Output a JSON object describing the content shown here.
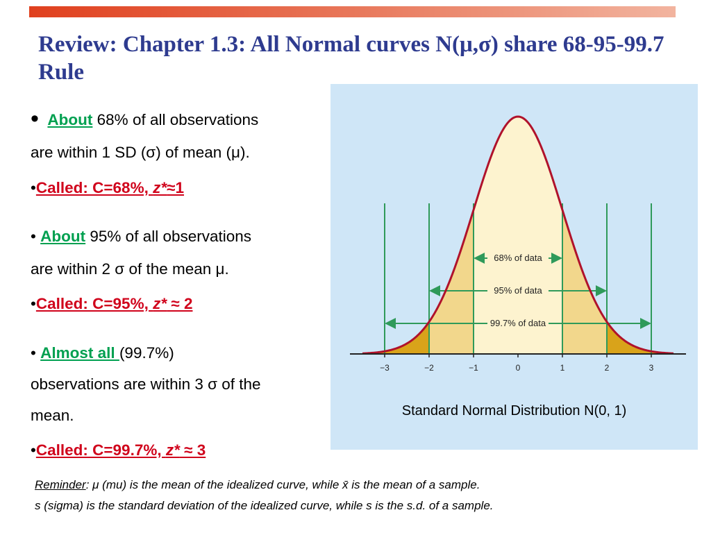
{
  "title": "Review: Chapter 1.3: All Normal curves N(μ,σ) share 68-95-99.7 Rule",
  "bullets": {
    "b1": {
      "about": "About",
      "line1_rest": " 68% of all observations",
      "line2": "are within 1 SD (σ) of mean (μ).",
      "called": "Called: C=68%, ",
      "z": "z*",
      "called_end": "≈1"
    },
    "b2": {
      "about": "About",
      "line1_rest": " 95% of all observations",
      "line2": "are within 2 σ of the mean μ.",
      "called": "Called: C=95%, ",
      "z": "z*",
      "called_end": " ≈ 2"
    },
    "b3": {
      "about": "Almost all ",
      "line1_rest": "(99.7%)",
      "line2": "observations are within 3 σ of the",
      "line3": "mean.",
      "called": "Called: C=99.7%, ",
      "z": "z*",
      "called_end": " ≈ 3"
    }
  },
  "figure": {
    "caption": "Standard Normal Distribution N(0, 1)",
    "ticks": [
      "−3",
      "−2",
      "−1",
      "0",
      "1",
      "2",
      "3"
    ],
    "band_labels": [
      "68% of data",
      "95% of data",
      "99.7% of data"
    ]
  },
  "reminder": {
    "label": "Reminder",
    "line1": ": μ (mu) is the mean of the idealized curve, while x̄  is the mean of a sample.",
    "line2": "s (sigma) is the standard deviation of the idealized curve, while s is the s.d. of a sample."
  },
  "colors": {
    "title": "#2e3b8f",
    "accent_green": "#00a050",
    "accent_red": "#d0021b",
    "panel": "#cfe6f7",
    "curve": "#b0122b"
  }
}
